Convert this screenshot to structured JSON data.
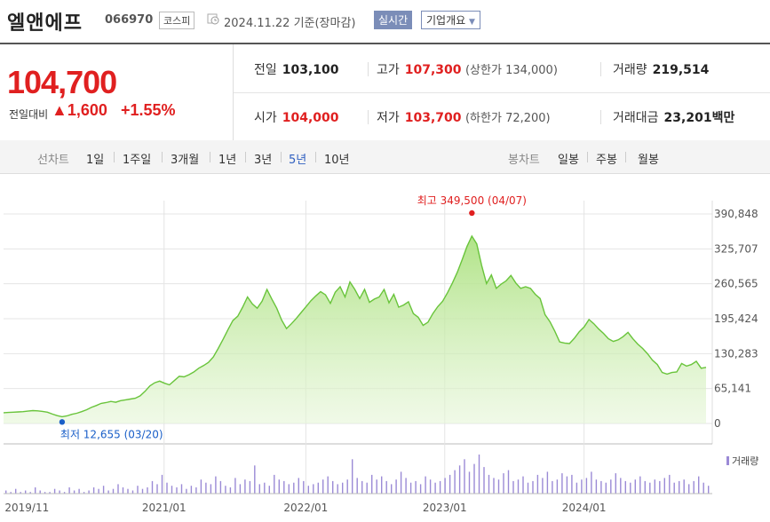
{
  "header": {
    "name": "엘앤에프",
    "code": "066970",
    "market": "코스피",
    "date": "2024.11.22 기준(장마감)",
    "realtime_label": "실시간",
    "corp_label": "기업개요"
  },
  "quote": {
    "price": "104,700",
    "change_label": "전일대비",
    "change": "1,600",
    "change_pct": "+1.55%",
    "prev_close_label": "전일",
    "prev_close": "103,100",
    "high_label": "고가",
    "high": "107,300",
    "upper_limit": "(상한가 134,000)",
    "volume_label": "거래량",
    "volume": "219,514",
    "open_label": "시가",
    "open": "104,000",
    "low_label": "저가",
    "low": "103,700",
    "lower_limit": "(하한가 72,200)",
    "amount_label": "거래대금",
    "amount": "23,201",
    "amount_unit": "백만"
  },
  "tabs": {
    "line_label": "선차트",
    "periods": [
      "1일",
      "1주일",
      "3개월",
      "1년",
      "3년",
      "5년",
      "10년"
    ],
    "active_period": "5년",
    "candle_label": "봉차트",
    "candles": [
      "일봉",
      "주봉",
      "월봉"
    ]
  },
  "colors": {
    "up": "#e02020",
    "down": "#1a5fc8",
    "line": "#69c43b",
    "volume": "#9b8ad6"
  },
  "chart_data": {
    "type": "area",
    "y_ticks": [
      "390,848",
      "325,707",
      "260,565",
      "195,424",
      "130,283",
      "65,141",
      "0"
    ],
    "ylim": [
      0,
      390848
    ],
    "x_ticks": [
      "2019/11",
      "2021/01",
      "2022/01",
      "2023/01",
      "2024/01"
    ],
    "max_label": "최고 349,500 (04/07)",
    "min_label": "최저 12,655 (03/20)",
    "volume_label": "거래량",
    "series": [
      {
        "values": [
          20000,
          20500,
          21000,
          21500,
          22000,
          23000,
          24000,
          23500,
          22500,
          21000,
          17500,
          14500,
          12655,
          14000,
          17000,
          19000,
          22000,
          25500,
          30000,
          33500,
          37500,
          39000,
          41000,
          39500,
          42500,
          44000,
          45500,
          47000,
          51500,
          60000,
          70000,
          76000,
          79000,
          75000,
          72000,
          80000,
          88000,
          87000,
          91000,
          96000,
          103000,
          108000,
          114000,
          124000,
          140000,
          157000,
          175000,
          192000,
          200000,
          217000,
          236000,
          223000,
          215000,
          228000,
          250000,
          232000,
          215000,
          193000,
          177000,
          186000,
          196000,
          207000,
          218000,
          229000,
          238000,
          246000,
          240000,
          224000,
          245000,
          255000,
          236000,
          264000,
          250000,
          233000,
          250000,
          226000,
          232000,
          236000,
          250000,
          225000,
          241000,
          217000,
          221000,
          227000,
          205000,
          198000,
          183000,
          189000,
          205000,
          218000,
          228000,
          244000,
          262000,
          282000,
          305000,
          330000,
          349500,
          335000,
          295000,
          261000,
          277000,
          252000,
          260000,
          266000,
          276000,
          262000,
          252000,
          255000,
          252000,
          241000,
          233000,
          203000,
          190000,
          172000,
          152000,
          150000,
          149000,
          159000,
          171000,
          180000,
          194000,
          186000,
          176000,
          168000,
          158000,
          153000,
          156000,
          162000,
          170000,
          158000,
          148000,
          140000,
          130000,
          118000,
          110000,
          95000,
          92000,
          95000,
          96000,
          112000,
          107000,
          110000,
          116000,
          103000,
          104700
        ]
      }
    ],
    "volumes": [
      2,
      1,
      3,
      1,
      2,
      1,
      4,
      2,
      1,
      1,
      3,
      2,
      1,
      4,
      2,
      3,
      1,
      2,
      4,
      3,
      5,
      2,
      3,
      6,
      4,
      3,
      2,
      5,
      3,
      4,
      8,
      6,
      12,
      7,
      5,
      4,
      6,
      3,
      5,
      4,
      9,
      7,
      6,
      11,
      8,
      5,
      4,
      10,
      6,
      9,
      8,
      18,
      6,
      7,
      5,
      12,
      9,
      8,
      6,
      7,
      10,
      8,
      5,
      6,
      7,
      9,
      11,
      8,
      6,
      7,
      9,
      22,
      10,
      8,
      7,
      12,
      9,
      11,
      8,
      6,
      9,
      14,
      10,
      7,
      8,
      6,
      11,
      9,
      7,
      8,
      10,
      12,
      15,
      18,
      22,
      14,
      19,
      25,
      17,
      12,
      10,
      9,
      13,
      15,
      8,
      9,
      11,
      7,
      8,
      12,
      10,
      14,
      8,
      9,
      13,
      11,
      12,
      7,
      9,
      10,
      14,
      9,
      8,
      7,
      9,
      13,
      10,
      8,
      7,
      9,
      11,
      8,
      7,
      9,
      8,
      10,
      12,
      7,
      8,
      9,
      6,
      8,
      11,
      7,
      5
    ]
  }
}
